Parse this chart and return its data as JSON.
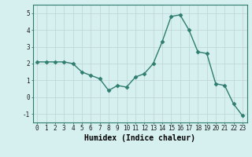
{
  "x": [
    0,
    1,
    2,
    3,
    4,
    5,
    6,
    7,
    8,
    9,
    10,
    11,
    12,
    13,
    14,
    15,
    16,
    17,
    18,
    19,
    20,
    21,
    22,
    23
  ],
  "y": [
    2.1,
    2.1,
    2.1,
    2.1,
    2.0,
    1.5,
    1.3,
    1.1,
    0.4,
    0.7,
    0.6,
    1.2,
    1.4,
    2.0,
    3.3,
    4.8,
    4.9,
    4.0,
    2.7,
    2.6,
    0.8,
    0.7,
    -0.4,
    -1.1
  ],
  "line_color": "#2e7d6e",
  "marker": "D",
  "markersize": 2.5,
  "linewidth": 1.0,
  "xlabel": "Humidex (Indice chaleur)",
  "xlabel_fontsize": 7,
  "xticks": [
    0,
    1,
    2,
    3,
    4,
    5,
    6,
    7,
    8,
    9,
    10,
    11,
    12,
    13,
    14,
    15,
    16,
    17,
    18,
    19,
    20,
    21,
    22,
    23
  ],
  "yticks": [
    -1,
    0,
    1,
    2,
    3,
    4,
    5
  ],
  "ylim": [
    -1.5,
    5.5
  ],
  "xlim": [
    -0.5,
    23.5
  ],
  "bg_color": "#d6f0f0",
  "grid_color": "#c0d8d8",
  "tick_fontsize": 5.5
}
